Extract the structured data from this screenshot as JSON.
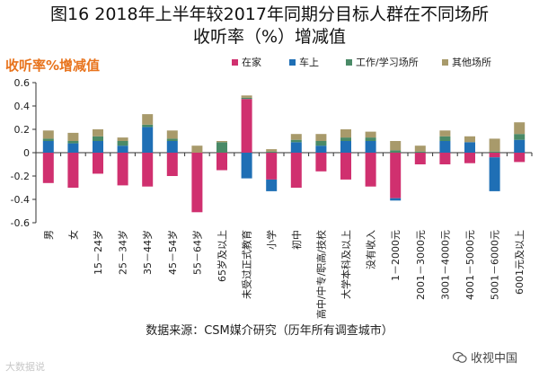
{
  "header": {
    "title_line1": "图16 2018年上半年较2017年同期分目标人群在不同场所",
    "title_line2": "收听率（%）增减值",
    "subtitle": "收听率%增减值"
  },
  "footer": {
    "source": "数据来源：CSM媒介研究（历年所有调查城市）",
    "watermark_left": "大数据说",
    "watermark_right": "收视中国"
  },
  "colors": {
    "home": "#d0306f",
    "car": "#1f6fb5",
    "work": "#4a8a67",
    "other": "#a89a6b"
  },
  "chart_data": {
    "type": "bar",
    "stacked": true,
    "title": "图16 2018年上半年较2017年同期分目标人群在不同场所收听率（%）增减值",
    "ylabel": "收听率%增减值",
    "ylim": [
      -0.6,
      0.6
    ],
    "yticks": [
      -0.6,
      -0.4,
      -0.2,
      0,
      0.2,
      0.4,
      0.6
    ],
    "ytick_labels": [
      "-0.6",
      "-0.4",
      "-0.2",
      "0",
      "0.2",
      "0.4",
      "0.6"
    ],
    "grid": false,
    "legend_position": "top",
    "categories": [
      "男",
      "女",
      "15－24岁",
      "25－34岁",
      "35－44岁",
      "45－54岁",
      "55－64岁",
      "65岁及以上",
      "未受过正式教育",
      "小学",
      "初中",
      "高中/中专/职高/技校",
      "大学本科及以上",
      "没有收入",
      "1－2000元",
      "2001－3000元",
      "3001－4000元",
      "4001－5000元",
      "5001－6000元",
      "6001元及以上"
    ],
    "series": [
      {
        "name": "在家",
        "color": "#d0306f",
        "values": [
          -0.26,
          -0.3,
          -0.18,
          -0.28,
          -0.29,
          -0.2,
          -0.51,
          -0.15,
          0.46,
          -0.23,
          -0.3,
          -0.16,
          -0.23,
          -0.29,
          -0.39,
          -0.1,
          -0.1,
          -0.09,
          -0.04,
          -0.08
        ]
      },
      {
        "name": "车上",
        "color": "#1f6fb5",
        "values": [
          0.1,
          0.08,
          0.1,
          0.06,
          0.22,
          0.1,
          0.0,
          0.0,
          -0.22,
          -0.1,
          0.09,
          0.06,
          0.1,
          0.1,
          -0.02,
          0.0,
          0.1,
          0.09,
          -0.29,
          0.11
        ]
      },
      {
        "name": "工作/学习场所",
        "color": "#4a8a67",
        "values": [
          0.02,
          0.02,
          0.04,
          0.04,
          0.02,
          0.02,
          0.0,
          0.09,
          0.01,
          0.01,
          0.02,
          0.04,
          0.03,
          0.03,
          0.02,
          0.01,
          0.04,
          0.0,
          0.01,
          0.05
        ]
      },
      {
        "name": "其他场所",
        "color": "#a89a6b",
        "values": [
          0.07,
          0.07,
          0.06,
          0.03,
          0.09,
          0.07,
          0.06,
          0.01,
          0.02,
          0.02,
          0.05,
          0.06,
          0.07,
          0.05,
          0.08,
          0.05,
          0.05,
          0.05,
          0.11,
          0.1
        ]
      }
    ]
  }
}
